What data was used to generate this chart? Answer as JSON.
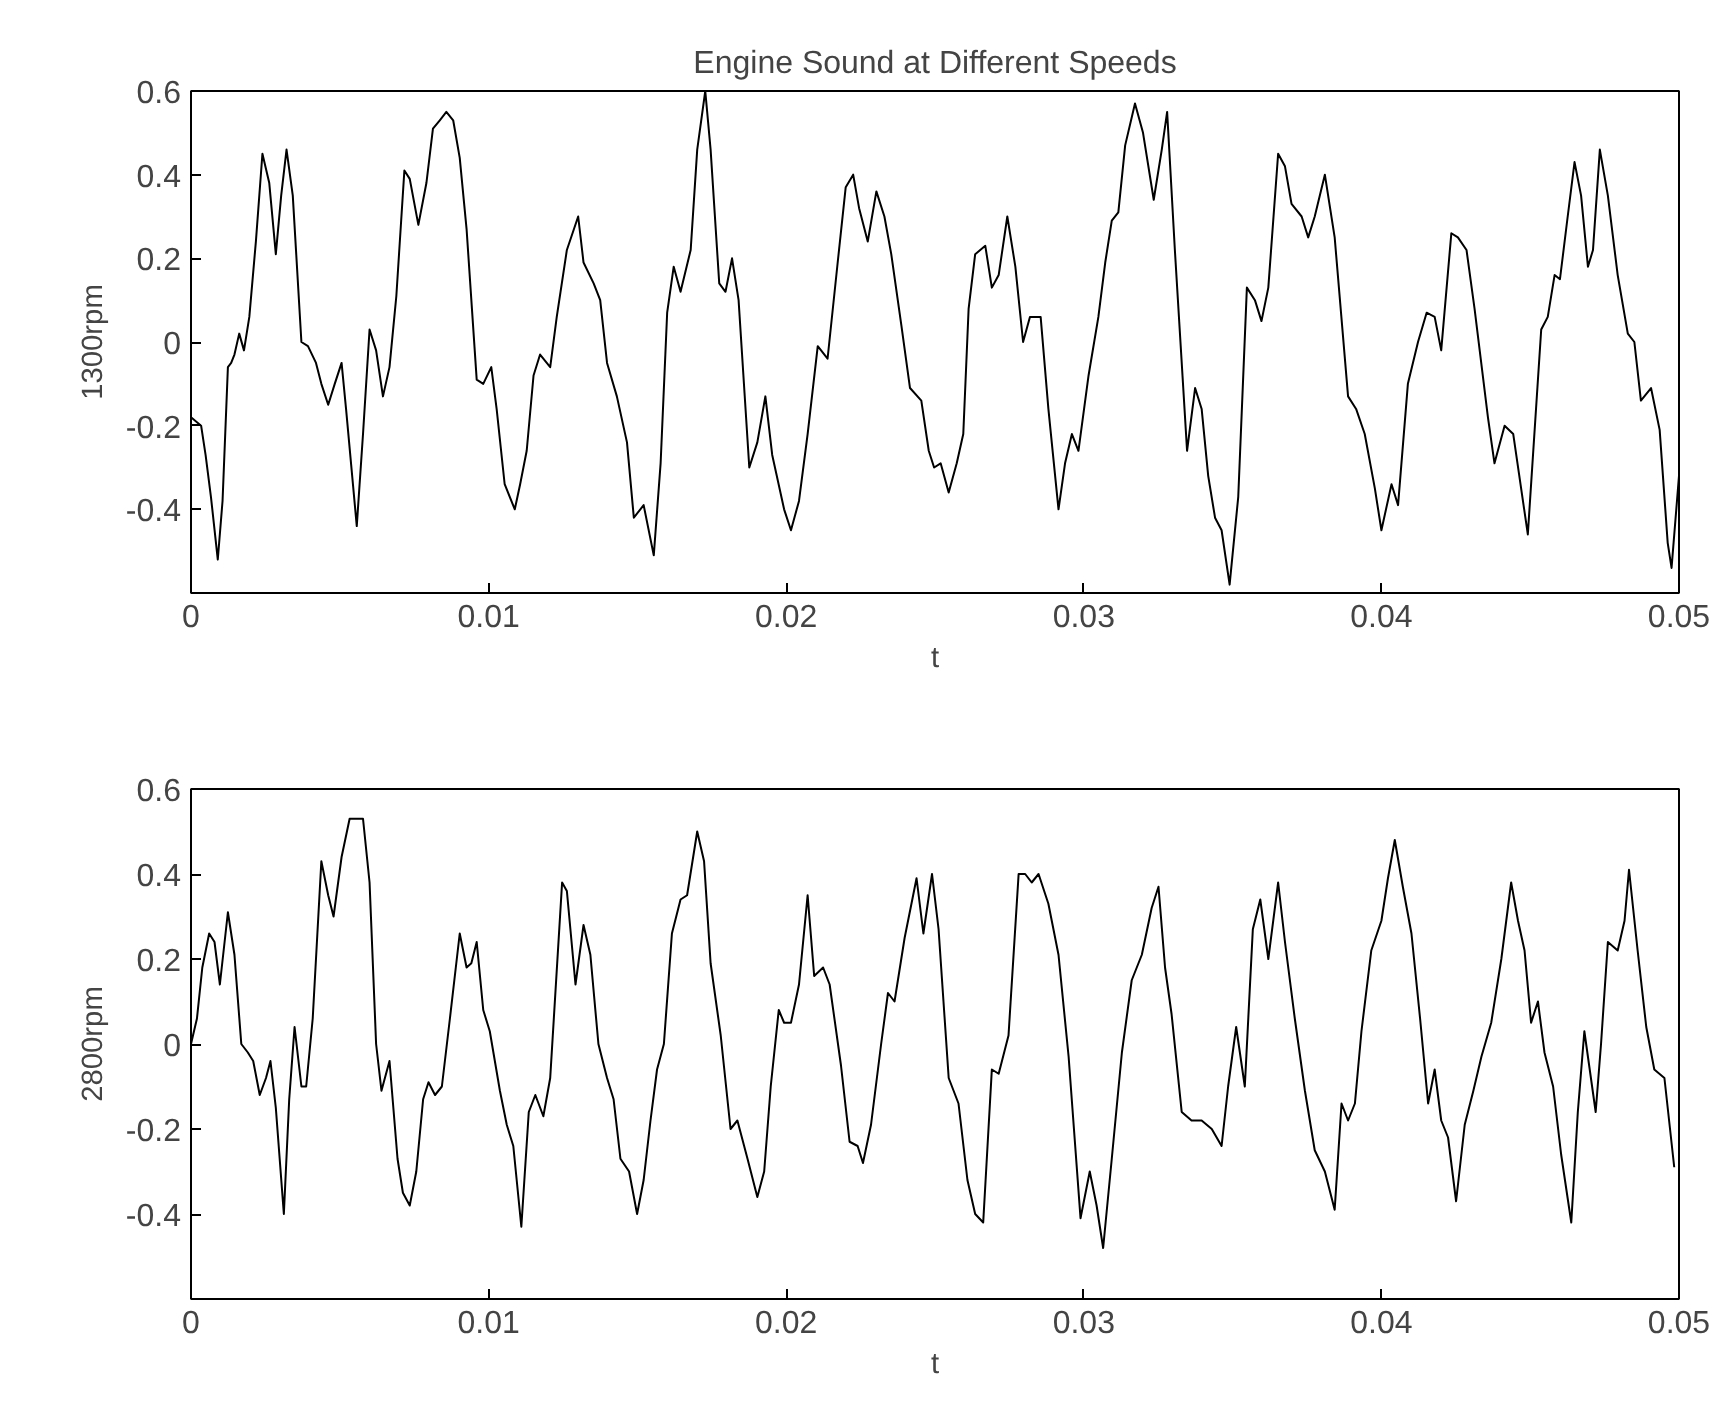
{
  "chart_data": [
    {
      "type": "line",
      "title": "Engine Sound at Different Speeds",
      "xlabel": "t",
      "ylabel": "1300rpm",
      "xlim": [
        0,
        0.05
      ],
      "ylim": [
        -0.6,
        0.6
      ],
      "xticks": [
        0,
        0.01,
        0.02,
        0.03,
        0.04,
        0.05
      ],
      "yticks": [
        -0.4,
        -0.2,
        0,
        0.2,
        0.4,
        0.6
      ],
      "series": [
        {
          "color": "#000000",
          "x": [
            0,
            0.00034,
            0.00049,
            0.00067,
            0.0009,
            0.00106,
            0.00124,
            0.00135,
            0.00146,
            0.00162,
            0.00178,
            0.00196,
            0.00218,
            0.0024,
            0.00263,
            0.00285,
            0.00303,
            0.00321,
            0.00342,
            0.00371,
            0.00393,
            0.0042,
            0.00438,
            0.00461,
            0.00483,
            0.00506,
            0.00521,
            0.00557,
            0.00578,
            0.006,
            0.00622,
            0.00645,
            0.00667,
            0.0069,
            0.00717,
            0.00735,
            0.00764,
            0.00791,
            0.00813,
            0.00836,
            0.00858,
            0.00881,
            0.00903,
            0.00926,
            0.0096,
            0.00982,
            0.01009,
            0.01027,
            0.01054,
            0.01088,
            0.01106,
            0.01128,
            0.01151,
            0.01173,
            0.01207,
            0.01229,
            0.01263,
            0.01301,
            0.01319,
            0.01353,
            0.01375,
            0.01398,
            0.01431,
            0.01465,
            0.01488,
            0.01521,
            0.01555,
            0.01578,
            0.016,
            0.01622,
            0.01645,
            0.01679,
            0.01701,
            0.01728,
            0.01746,
            0.01775,
            0.01796,
            0.01818,
            0.0184,
            0.01876,
            0.01903,
            0.0193,
            0.01953,
            0.01993,
            0.02016,
            0.02043,
            0.02072,
            0.02106,
            0.02139,
            0.02173,
            0.022,
            0.02225,
            0.02245,
            0.02274,
            0.02303,
            0.0233,
            0.02353,
            0.02387,
            0.02416,
            0.02454,
            0.02479,
            0.02497,
            0.02519,
            0.02546,
            0.02573,
            0.02595,
            0.02613,
            0.02635,
            0.02669,
            0.02691,
            0.02714,
            0.02743,
            0.0277,
            0.02796,
            0.02819,
            0.02855,
            0.02881,
            0.02915,
            0.02937,
            0.0296,
            0.02982,
            0.03016,
            0.03049,
            0.03072,
            0.03094,
            0.03116,
            0.03139,
            0.03172,
            0.03199,
            0.03235,
            0.03262,
            0.0328,
            0.03306,
            0.03347,
            0.03374,
            0.03396,
            0.03418,
            0.03441,
            0.03463,
            0.0349,
            0.03519,
            0.03548,
            0.03575,
            0.03597,
            0.0362,
            0.03653,
            0.03676,
            0.03698,
            0.03732,
            0.03754,
            0.03776,
            0.0381,
            0.03843,
            0.03888,
            0.03915,
            0.03944,
            0.03978,
            0.04,
            0.04034,
            0.04056,
            0.04089,
            0.04123,
            0.04152,
            0.04179,
            0.04201,
            0.04235,
            0.04257,
            0.04286,
            0.04313,
            0.04358,
            0.0438,
            0.04414,
            0.04443,
            0.04492,
            0.04537,
            0.04559,
            0.04582,
            0.046,
            0.04626,
            0.04649,
            0.04671,
            0.04694,
            0.04711,
            0.04734,
            0.04761,
            0.04794,
            0.04828,
            0.0485,
            0.04872,
            0.04906,
            0.04935,
            0.04962,
            0.04975,
            0.05
          ],
          "values": [
            -0.18,
            -0.2,
            -0.27,
            -0.37,
            -0.52,
            -0.38,
            -0.06,
            -0.05,
            -0.03,
            0.02,
            -0.02,
            0.06,
            0.24,
            0.45,
            0.38,
            0.21,
            0.35,
            0.46,
            0.35,
            0,
            -0.01,
            -0.05,
            -0.1,
            -0.15,
            -0.1,
            -0.05,
            -0.16,
            -0.44,
            -0.22,
            0.03,
            -0.02,
            -0.13,
            -0.06,
            0.11,
            0.41,
            0.39,
            0.28,
            0.38,
            0.51,
            0.53,
            0.55,
            0.53,
            0.44,
            0.27,
            -0.09,
            -0.1,
            -0.06,
            -0.16,
            -0.34,
            -0.4,
            -0.34,
            -0.26,
            -0.08,
            -0.03,
            -0.06,
            0.06,
            0.22,
            0.3,
            0.19,
            0.14,
            0.1,
            -0.05,
            -0.13,
            -0.24,
            -0.42,
            -0.39,
            -0.51,
            -0.29,
            0.07,
            0.18,
            0.12,
            0.22,
            0.46,
            0.6,
            0.46,
            0.14,
            0.12,
            0.2,
            0.1,
            -0.3,
            -0.24,
            -0.13,
            -0.27,
            -0.4,
            -0.45,
            -0.38,
            -0.22,
            -0.01,
            -0.04,
            0.19,
            0.37,
            0.4,
            0.32,
            0.24,
            0.36,
            0.3,
            0.21,
            0.04,
            -0.11,
            -0.14,
            -0.26,
            -0.3,
            -0.29,
            -0.36,
            -0.29,
            -0.22,
            0.08,
            0.21,
            0.23,
            0.13,
            0.16,
            0.3,
            0.18,
            0,
            0.06,
            0.06,
            -0.16,
            -0.4,
            -0.29,
            -0.22,
            -0.26,
            -0.08,
            0.06,
            0.19,
            0.29,
            0.31,
            0.47,
            0.57,
            0.5,
            0.34,
            0.46,
            0.55,
            0.22,
            -0.26,
            -0.11,
            -0.16,
            -0.32,
            -0.42,
            -0.45,
            -0.58,
            -0.37,
            0.13,
            0.1,
            0.05,
            0.13,
            0.45,
            0.42,
            0.33,
            0.3,
            0.25,
            0.3,
            0.4,
            0.25,
            -0.13,
            -0.16,
            -0.22,
            -0.35,
            -0.45,
            -0.34,
            -0.39,
            -0.1,
            0,
            0.07,
            0.06,
            -0.02,
            0.26,
            0.25,
            0.22,
            0.08,
            -0.18,
            -0.29,
            -0.2,
            -0.22,
            -0.46,
            0.03,
            0.06,
            0.16,
            0.15,
            0.3,
            0.43,
            0.35,
            0.18,
            0.22,
            0.46,
            0.35,
            0.16,
            0.02,
            0,
            -0.14,
            -0.11,
            -0.21,
            -0.48,
            -0.54,
            -0.32
          ]
        }
      ]
    },
    {
      "type": "line",
      "xlabel": "t",
      "ylabel": "2800rpm",
      "xlim": [
        0,
        0.05
      ],
      "ylim": [
        -0.6,
        0.6
      ],
      "xticks": [
        0,
        0.01,
        0.02,
        0.03,
        0.04,
        0.05
      ],
      "yticks": [
        -0.4,
        -0.2,
        0,
        0.2,
        0.4,
        0.6
      ],
      "series": [
        {
          "color": "#000000",
          "x": [
            0,
            0.0002,
            0.00038,
            0.00061,
            0.00079,
            0.00097,
            0.00124,
            0.00146,
            0.00169,
            0.00191,
            0.00209,
            0.00231,
            0.00252,
            0.00267,
            0.00285,
            0.00312,
            0.0033,
            0.00348,
            0.00371,
            0.00387,
            0.00409,
            0.00438,
            0.00461,
            0.00479,
            0.00506,
            0.00533,
            0.00555,
            0.00578,
            0.006,
            0.00622,
            0.0064,
            0.00667,
            0.00694,
            0.00712,
            0.00735,
            0.00757,
            0.0078,
            0.00798,
            0.0082,
            0.00843,
            0.0087,
            0.00903,
            0.00926,
            0.00942,
            0.0096,
            0.00982,
            0.01004,
            0.01038,
            0.01061,
            0.01083,
            0.0111,
            0.01135,
            0.01157,
            0.01184,
            0.01207,
            0.01247,
            0.01263,
            0.01292,
            0.01319,
            0.01342,
            0.01369,
            0.01398,
            0.0142,
            0.01443,
            0.01472,
            0.01499,
            0.01521,
            0.01544,
            0.01566,
            0.01589,
            0.01616,
            0.01645,
            0.01667,
            0.01701,
            0.01724,
            0.01746,
            0.0178,
            0.01813,
            0.01836,
            0.0187,
            0.01903,
            0.01926,
            0.01948,
            0.01975,
            0.01993,
            0.02016,
            0.02043,
            0.02072,
            0.02094,
            0.02124,
            0.02146,
            0.02184,
            0.02213,
            0.0224,
            0.02258,
            0.02285,
            0.02319,
            0.02342,
            0.02364,
            0.02398,
            0.02438,
            0.02461,
            0.0249,
            0.02512,
            0.02546,
            0.02579,
            0.02609,
            0.02635,
            0.02662,
            0.02691,
            0.02714,
            0.02747,
            0.02781,
            0.02803,
            0.02825,
            0.02848,
            0.02881,
            0.02915,
            0.02949,
            0.02989,
            0.0302,
            0.03043,
            0.03065,
            0.03094,
            0.03128,
            0.03161,
            0.03195,
            0.03228,
            0.03251,
            0.03273,
            0.03295,
            0.03329,
            0.03362,
            0.03396,
            0.0343,
            0.03463,
            0.03485,
            0.03512,
            0.03541,
            0.03568,
            0.03593,
            0.0362,
            0.03653,
            0.03676,
            0.03709,
            0.03743,
            0.03776,
            0.0381,
            0.03843,
            0.03866,
            0.03888,
            0.03911,
            0.03933,
            0.03966,
            0.04,
            0.04022,
            0.04045,
            0.04072,
            0.04101,
            0.0413,
            0.04157,
            0.04179,
            0.04201,
            0.04224,
            0.04251,
            0.0428,
            0.04309,
            0.04336,
            0.04369,
            0.04403,
            0.04436,
            0.04459,
            0.04481,
            0.04503,
            0.04526,
            0.04548,
            0.04577,
            0.04604,
            0.04638,
            0.0466,
            0.04682,
            0.04698,
            0.0472,
            0.04738,
            0.04761,
            0.04794,
            0.04817,
            0.04832,
            0.04861,
            0.0489,
            0.04917,
            0.04951,
            0.04984
          ],
          "values": [
            0,
            0.06,
            0.18,
            0.26,
            0.24,
            0.14,
            0.31,
            0.21,
            0,
            -0.02,
            -0.04,
            -0.12,
            -0.08,
            -0.04,
            -0.15,
            -0.4,
            -0.13,
            0.04,
            -0.1,
            -0.1,
            0.06,
            0.43,
            0.35,
            0.3,
            0.44,
            0.53,
            0.53,
            0.53,
            0.38,
            0,
            -0.11,
            -0.04,
            -0.27,
            -0.35,
            -0.38,
            -0.3,
            -0.13,
            -0.09,
            -0.12,
            -0.1,
            0.06,
            0.26,
            0.18,
            0.19,
            0.24,
            0.08,
            0.03,
            -0.11,
            -0.19,
            -0.24,
            -0.43,
            -0.16,
            -0.12,
            -0.17,
            -0.08,
            0.38,
            0.36,
            0.14,
            0.28,
            0.21,
            0,
            -0.08,
            -0.13,
            -0.27,
            -0.3,
            -0.4,
            -0.32,
            -0.18,
            -0.06,
            0,
            0.26,
            0.34,
            0.35,
            0.5,
            0.43,
            0.19,
            0.02,
            -0.2,
            -0.18,
            -0.27,
            -0.36,
            -0.3,
            -0.1,
            0.08,
            0.05,
            0.05,
            0.14,
            0.35,
            0.16,
            0.18,
            0.14,
            -0.05,
            -0.23,
            -0.24,
            -0.28,
            -0.19,
            0,
            0.12,
            0.1,
            0.25,
            0.39,
            0.26,
            0.4,
            0.27,
            -0.08,
            -0.14,
            -0.32,
            -0.4,
            -0.42,
            -0.06,
            -0.07,
            0.02,
            0.4,
            0.4,
            0.38,
            0.4,
            0.33,
            0.21,
            -0.03,
            -0.41,
            -0.3,
            -0.38,
            -0.48,
            -0.27,
            -0.02,
            0.15,
            0.21,
            0.32,
            0.37,
            0.18,
            0.07,
            -0.16,
            -0.18,
            -0.18,
            -0.2,
            -0.24,
            -0.1,
            0.04,
            -0.1,
            0.27,
            0.34,
            0.2,
            0.38,
            0.24,
            0.06,
            -0.11,
            -0.25,
            -0.3,
            -0.39,
            -0.14,
            -0.18,
            -0.14,
            0.03,
            0.22,
            0.29,
            0.39,
            0.48,
            0.37,
            0.26,
            0.06,
            -0.14,
            -0.06,
            -0.18,
            -0.22,
            -0.37,
            -0.19,
            -0.11,
            -0.03,
            0.05,
            0.2,
            0.38,
            0.29,
            0.22,
            0.05,
            0.1,
            -0.02,
            -0.1,
            -0.26,
            -0.42,
            -0.16,
            0.03,
            -0.05,
            -0.16,
            0,
            0.24,
            0.22,
            0.29,
            0.41,
            0.22,
            0.04,
            -0.06,
            -0.08,
            -0.29
          ]
        }
      ]
    }
  ]
}
